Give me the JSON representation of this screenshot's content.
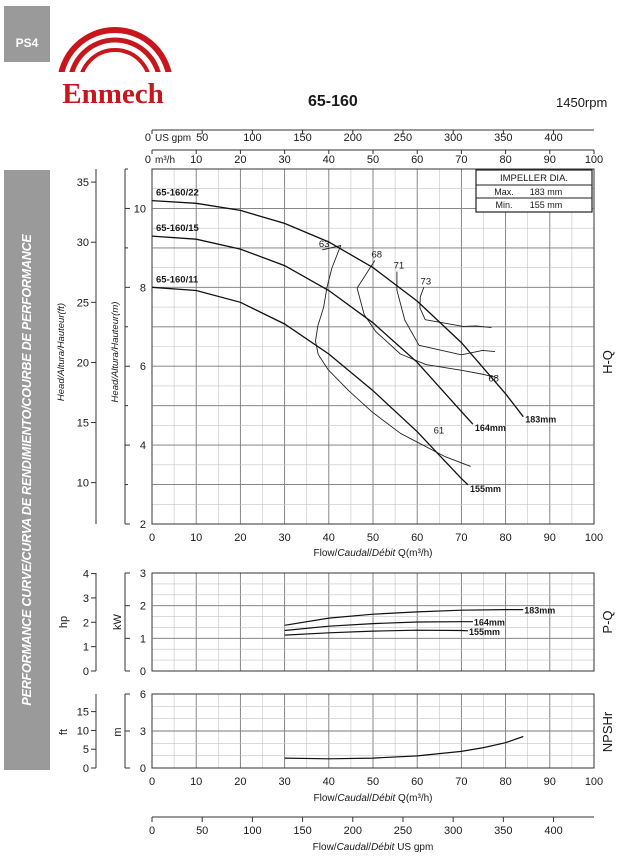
{
  "header": {
    "badge": "PS4",
    "brand": "Enmech",
    "model": "65-160",
    "speed": "1450rpm"
  },
  "sidebar_text": "PERFORMANCE CURVE/CURVA DE RENDIMIENTO/COURBE DE PERFORMANCE",
  "colors": {
    "brand_red": "#c8161d",
    "grid": "#9a9a9a",
    "sidebar": "#9a9a9a"
  },
  "chart_data": [
    {
      "type": "line",
      "name": "H-Q",
      "side_label": "H-Q",
      "top_axis_gpm": {
        "label": "US gpm",
        "ticks": [
          "0",
          "50",
          "100",
          "150",
          "200",
          "250",
          "300",
          "350",
          "400"
        ]
      },
      "top_axis_m3h": {
        "label": "m³/h",
        "ticks": [
          "0",
          "10",
          "20",
          "30",
          "40",
          "50",
          "60",
          "70",
          "80",
          "90",
          "100"
        ]
      },
      "xlabel_prefix": "Flow/",
      "xlabel_caudal": "Caudal",
      "xlabel_sep": "/",
      "xlabel_debit": "Débit",
      "xlabel_unit": " Q(m³/h)",
      "ylabel_ft": "Head/Altura/Hauteur(ft)",
      "ylabel_m": "Head/Altura/Hauteur(m)",
      "xlim": [
        0,
        100
      ],
      "ylim_m": [
        2,
        11
      ],
      "yticks_m": [
        "2",
        "4",
        "6",
        "8",
        "10"
      ],
      "yticks_ft": [
        "10",
        "15",
        "20",
        "25",
        "30",
        "35"
      ],
      "xticks": [
        "0",
        "10",
        "20",
        "30",
        "40",
        "50",
        "60",
        "70",
        "80",
        "90",
        "100"
      ],
      "impeller_table": {
        "title": "IMPELLER DIA.",
        "rows": [
          [
            "Max.",
            "183  mm"
          ],
          [
            "Min.",
            "155  mm"
          ]
        ]
      },
      "series": [
        {
          "name": "65-160/22",
          "end_label": "183mm",
          "x": [
            0,
            10,
            20,
            30,
            40,
            50,
            60,
            70,
            80,
            84
          ],
          "y": [
            10.2,
            10.13,
            9.95,
            9.62,
            9.15,
            8.5,
            7.65,
            6.6,
            5.3,
            4.72
          ]
        },
        {
          "name": "65-160/15",
          "end_label": "164mm",
          "x": [
            0,
            10,
            20,
            30,
            40,
            50,
            60,
            70,
            72.6
          ],
          "y": [
            9.3,
            9.22,
            8.97,
            8.55,
            7.92,
            7.1,
            6.1,
            4.85,
            4.53
          ]
        },
        {
          "name": "65-160/11",
          "end_label": "155mm",
          "x": [
            0,
            10,
            20,
            30,
            40,
            50,
            60,
            70,
            71.5
          ],
          "y": [
            8.0,
            7.92,
            7.62,
            7.07,
            6.31,
            5.38,
            4.34,
            3.15,
            2.99
          ]
        }
      ],
      "efficiency_curves": [
        {
          "label": "63",
          "x": [
            38.5,
            42.7,
            40.7,
            39.6,
            38.8,
            37.5,
            37.0,
            37.6,
            39.8,
            44.5,
            49.7,
            56.2,
            66.3,
            72.1
          ],
          "y": [
            8.95,
            9.06,
            8.49,
            8.0,
            7.48,
            7.02,
            6.64,
            6.3,
            5.92,
            5.38,
            4.85,
            4.3,
            3.71,
            3.46
          ]
        },
        {
          "label": "68",
          "x": [
            50.4,
            46.4,
            48.0,
            50.6,
            56.2,
            62.0,
            70.4,
            75.1,
            78.1
          ],
          "y": [
            8.68,
            7.98,
            7.31,
            6.88,
            6.31,
            6.04,
            5.89,
            5.79,
            5.71
          ]
        },
        {
          "label": "71",
          "x": [
            55.4,
            55.4,
            57.2,
            60.4,
            70.0,
            74.8,
            77.6
          ],
          "y": [
            8.4,
            7.93,
            7.17,
            6.53,
            6.29,
            6.4,
            6.37
          ]
        },
        {
          "label": "73",
          "x": [
            61.5,
            60.7,
            60.6,
            61.8,
            70.4,
            73.3,
            76.8
          ],
          "y": [
            8.0,
            7.76,
            7.48,
            7.18,
            7.01,
            7.02,
            6.98
          ]
        }
      ],
      "efficiency_end_labels": [
        {
          "label": "68",
          "x": 77.3,
          "y": 5.61
        },
        {
          "label": "61",
          "x": 64.9,
          "y": 4.3
        }
      ]
    },
    {
      "type": "line",
      "name": "P-Q",
      "side_label": "P-Q",
      "ylabel_kw": "kW",
      "ylabel_hp": "hp",
      "xlim": [
        0,
        100
      ],
      "ylim_kw": [
        0,
        3
      ],
      "yticks_kw": [
        "0",
        "1",
        "2",
        "3"
      ],
      "yticks_hp": [
        "0",
        "1",
        "2",
        "3",
        "4"
      ],
      "series": [
        {
          "name": "183mm",
          "x": [
            30,
            40,
            50,
            60,
            70,
            80,
            84
          ],
          "y": [
            1.4,
            1.62,
            1.74,
            1.81,
            1.86,
            1.88,
            1.88
          ]
        },
        {
          "name": "164mm",
          "x": [
            30,
            40,
            50,
            60,
            70,
            72.6
          ],
          "y": [
            1.24,
            1.37,
            1.45,
            1.5,
            1.51,
            1.51
          ]
        },
        {
          "name": "155mm",
          "x": [
            30,
            40,
            50,
            60,
            70,
            71.5
          ],
          "y": [
            1.1,
            1.17,
            1.22,
            1.25,
            1.24,
            1.23
          ]
        }
      ]
    },
    {
      "type": "line",
      "name": "NPSHr",
      "side_label": "NPSHr",
      "ylabel_m": "m",
      "ylabel_ft": "ft",
      "ylim_m": [
        0,
        6
      ],
      "yticks_m": [
        "0",
        "3",
        "6"
      ],
      "yticks_ft": [
        "0",
        "5",
        "10",
        "15"
      ],
      "xticks": [
        "0",
        "10",
        "20",
        "30",
        "40",
        "50",
        "60",
        "70",
        "80",
        "90",
        "100"
      ],
      "xlabel_unit": " Q(m³/h)",
      "series": [
        {
          "name": "NPSHr",
          "x": [
            30,
            40,
            50,
            60,
            70,
            75,
            80,
            84
          ],
          "y": [
            0.8,
            0.75,
            0.8,
            0.98,
            1.35,
            1.65,
            2.05,
            2.55
          ]
        }
      ]
    },
    {
      "type": "axis",
      "name": "US gpm axis",
      "ticks": [
        "0",
        "50",
        "100",
        "150",
        "200",
        "250",
        "300",
        "350",
        "400"
      ],
      "xlabel_unit": " US gpm"
    }
  ]
}
